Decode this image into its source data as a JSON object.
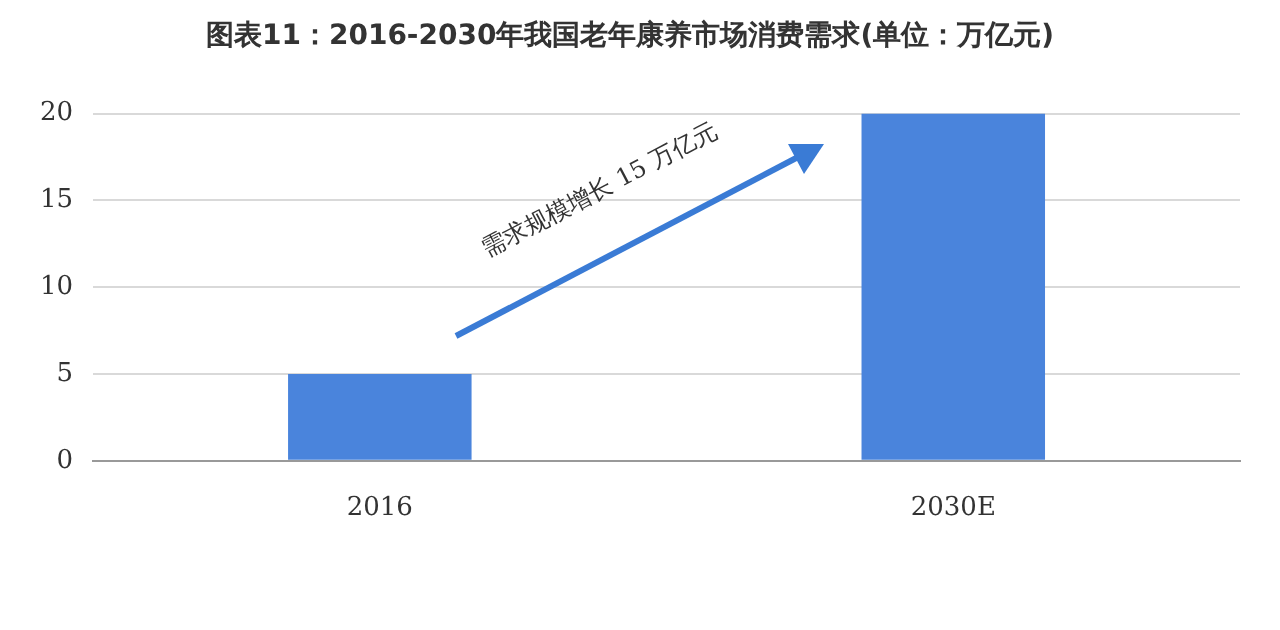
{
  "chart_data": {
    "type": "bar",
    "title": "图表11：2016-2030年我国老年康养市场消费需求(单位：万亿元)",
    "categories": [
      "2016",
      "2030E"
    ],
    "values": [
      5,
      20
    ],
    "color": "#4a84dc",
    "ylim": [
      0,
      20
    ],
    "yticks": [
      0,
      5,
      10,
      15,
      20
    ],
    "grid": "y",
    "legend": false,
    "annotations": [
      "需求规模增长 15 万亿元"
    ]
  }
}
